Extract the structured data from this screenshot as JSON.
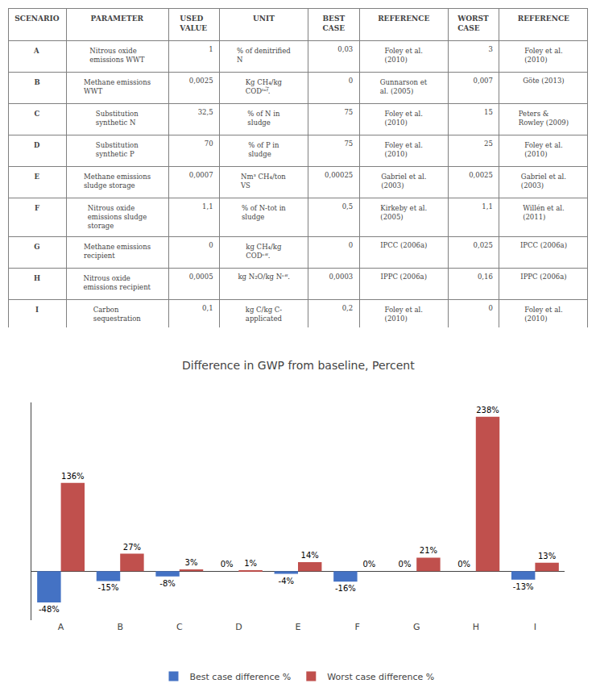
{
  "chart_data": [
    {
      "type": "table",
      "columns": [
        "SCENARIO",
        "PARAMETER",
        "USED\nVALUE",
        "UNIT",
        "BEST\nCASE",
        "REFERENCE",
        "WORST\nCASE",
        "REFERENCE"
      ],
      "rows": [
        [
          "A",
          "Nitrous oxide\nemissions WWT",
          "1",
          "% of denitrified\nN",
          "0,03",
          "Foley et al.\n(2010)",
          "3",
          "Foley et al.\n(2010)"
        ],
        [
          "B",
          "Methane emissions\nWWT",
          "0,0025",
          "Kg CH₄/kg\nCODᴵⁿᶠ᷌.",
          "0",
          "Gunnarson et\nal. (2005)",
          "0,007",
          "Göte (2013)"
        ],
        [
          "C",
          "Substitution\nsynthetic N",
          "32,5",
          "% of N in\nsludge",
          "75",
          "Foley et al.\n(2010)",
          "15",
          "Peters &\nRowley (2009)"
        ],
        [
          "D",
          "Substitution\nsynthetic P",
          "70",
          "% of P in\nsludge",
          "75",
          "Foley et al.\n(2010)",
          "25",
          "Foley et al.\n(2010)"
        ],
        [
          "E",
          "Methane emissions\nsludge storage",
          "0,0007",
          "Nm³ CH₄/ton\nVS",
          "0,00025",
          "Gabriel et al.\n(2003)",
          "0,0025",
          "Gabriel et al.\n(2003)"
        ],
        [
          "F",
          "Nitrous oxide\nemissions sludge\nstorage",
          "1,1",
          "% of N-tot in\nsludge",
          "0,5",
          "Kirkeby et al.\n(2005)",
          "1,1",
          "Willén et al.\n(2011)"
        ],
        [
          "G",
          "Methane emissions\nrecipient",
          "0",
          "kg CH₄/kg\nCODᵉᶠᶠ.",
          "0",
          "IPCC (2006a)",
          "0,025",
          "IPCC (2006a)"
        ],
        [
          "H",
          "Nitrous oxide\nemissions recipient",
          "0,0005",
          "kg N₂O/kg Nᵉᶠᶠ.",
          "0,0003",
          "IPPC (2006a)",
          "0,16",
          "IPPC (2006a)"
        ],
        [
          "I",
          "Carbon\nsequestration",
          "0,1",
          "kg C/kg C-\napplicated",
          "0,2",
          "Foley et al.\n(2010)",
          "0",
          "Foley et al.\n(2010)"
        ]
      ]
    },
    {
      "type": "bar",
      "title": "Difference in GWP from baseline, Percent",
      "categories": [
        "A",
        "B",
        "C",
        "D",
        "E",
        "F",
        "G",
        "H",
        "I"
      ],
      "series": [
        {
          "name": "Best case difference %",
          "color": "#4472C4",
          "values": [
            -48,
            -15,
            -8,
            0,
            -4,
            -16,
            0,
            0,
            -13
          ],
          "value_labels": [
            "-48%",
            "-15%",
            "-8%",
            "0%",
            "-4%",
            "-16%",
            "0%",
            "0%",
            "-13%"
          ]
        },
        {
          "name": "Worst case difference %",
          "color": "#C0504D",
          "values": [
            136,
            27,
            3,
            1,
            14,
            0,
            21,
            238,
            13
          ],
          "value_labels": [
            "136%",
            "27%",
            "3%",
            "1%",
            "14%",
            "0%",
            "21%",
            "238%",
            "13%"
          ]
        }
      ],
      "ylim": [
        -75,
        260
      ],
      "grid": false,
      "legend": "bottom",
      "data_labels": true,
      "tick_labels": "x"
    }
  ]
}
